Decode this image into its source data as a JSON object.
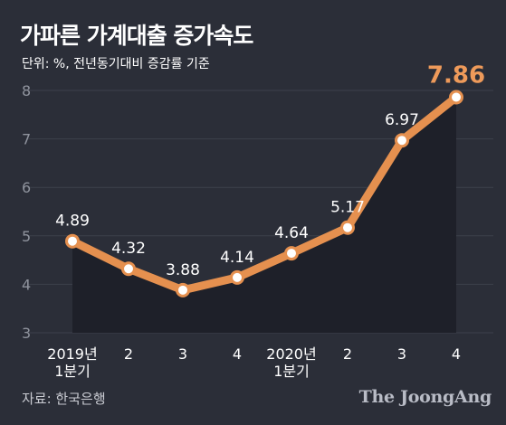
{
  "title": "가파른 가계대출 증가속도",
  "subtitle": "단위: %, 전년동기대비 증감률 기준",
  "source": "자료: 한국은행",
  "brand": "The JoongAng",
  "colors": {
    "background": "#2b2e38",
    "area": "#1e2029",
    "line": "#e5904f",
    "highlight": "#ee9a5a",
    "grid": "#3c404b",
    "tick_text": "#8f939d",
    "text": "#ffffff"
  },
  "chart_data": {
    "type": "line",
    "title": "가파른 가계대출 증가속도",
    "subtitle": "단위: %, 전년동기대비 증감률 기준",
    "categories": [
      [
        "2019년",
        "1분기"
      ],
      [
        "2"
      ],
      [
        "3"
      ],
      [
        "4"
      ],
      [
        "2020년",
        "1분기"
      ],
      [
        "2"
      ],
      [
        "3"
      ],
      [
        "4"
      ]
    ],
    "values": [
      4.89,
      4.32,
      3.88,
      4.14,
      4.64,
      5.17,
      6.97,
      7.86
    ],
    "labels": [
      "4.89",
      "4.32",
      "3.88",
      "4.14",
      "4.64",
      "5.17",
      "6.97",
      "7.86"
    ],
    "y_ticks": [
      "3",
      "4",
      "5",
      "6",
      "7",
      "8"
    ],
    "ylim": [
      3,
      8
    ],
    "grid": true,
    "highlight_last": true
  }
}
